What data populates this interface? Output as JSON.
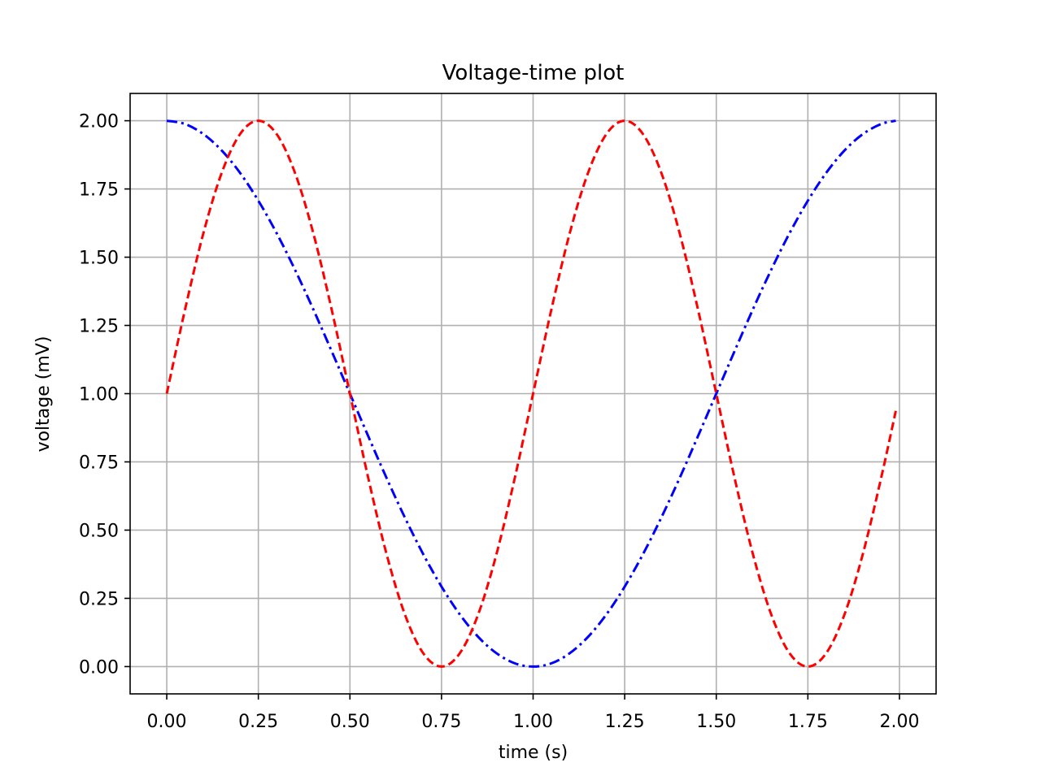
{
  "chart_data": {
    "type": "line",
    "title": "Voltage-time plot",
    "xlabel": "time (s)",
    "ylabel": "voltage (mV)",
    "xlim": [
      -0.1,
      2.1
    ],
    "ylim": [
      -0.1,
      2.1
    ],
    "xticks": [
      0.0,
      0.25,
      0.5,
      0.75,
      1.0,
      1.25,
      1.5,
      1.75,
      2.0
    ],
    "xtick_labels": [
      "0.00",
      "0.25",
      "0.50",
      "0.75",
      "1.00",
      "1.25",
      "1.50",
      "1.75",
      "2.00"
    ],
    "yticks": [
      0.0,
      0.25,
      0.5,
      0.75,
      1.0,
      1.25,
      1.5,
      1.75,
      2.0
    ],
    "ytick_labels": [
      "0.00",
      "0.25",
      "0.50",
      "0.75",
      "1.00",
      "1.25",
      "1.50",
      "1.75",
      "2.00"
    ],
    "grid": true,
    "legend": "none",
    "series": [
      {
        "color": "#0000ff",
        "linestyle": "dash-dot",
        "x": [
          0.0,
          0.05,
          0.1,
          0.15,
          0.2,
          0.25,
          0.3,
          0.35,
          0.4,
          0.45,
          0.5,
          0.55,
          0.6,
          0.65,
          0.7,
          0.75,
          0.8,
          0.85,
          0.9,
          0.95,
          1.0,
          1.05,
          1.1,
          1.15,
          1.2,
          1.25,
          1.3,
          1.35,
          1.4,
          1.45,
          1.5,
          1.55,
          1.6,
          1.65,
          1.7,
          1.75,
          1.8,
          1.85,
          1.9,
          1.95,
          1.99
        ],
        "y": [
          2.0,
          1.988,
          1.951,
          1.891,
          1.809,
          1.707,
          1.588,
          1.454,
          1.309,
          1.156,
          1.0,
          0.844,
          0.691,
          0.546,
          0.412,
          0.293,
          0.191,
          0.109,
          0.049,
          0.012,
          0.0,
          0.012,
          0.049,
          0.109,
          0.191,
          0.293,
          0.412,
          0.546,
          0.691,
          0.844,
          1.0,
          1.156,
          1.309,
          1.454,
          1.588,
          1.707,
          1.809,
          1.891,
          1.951,
          1.988,
          2.0
        ]
      },
      {
        "color": "#ff0000",
        "linestyle": "dashed",
        "x": [
          0.0,
          0.05,
          0.1,
          0.15,
          0.2,
          0.25,
          0.3,
          0.35,
          0.4,
          0.45,
          0.5,
          0.55,
          0.6,
          0.65,
          0.7,
          0.75,
          0.8,
          0.85,
          0.9,
          0.95,
          1.0,
          1.05,
          1.1,
          1.15,
          1.2,
          1.25,
          1.3,
          1.35,
          1.4,
          1.45,
          1.5,
          1.55,
          1.6,
          1.65,
          1.7,
          1.75,
          1.8,
          1.85,
          1.9,
          1.95,
          1.99
        ],
        "y": [
          1.0,
          1.309,
          1.588,
          1.809,
          1.951,
          2.0,
          1.951,
          1.809,
          1.588,
          1.309,
          1.0,
          0.691,
          0.412,
          0.191,
          0.049,
          0.0,
          0.049,
          0.191,
          0.412,
          0.691,
          1.0,
          1.309,
          1.588,
          1.809,
          1.951,
          2.0,
          1.951,
          1.809,
          1.588,
          1.309,
          1.0,
          0.691,
          0.412,
          0.191,
          0.049,
          0.0,
          0.049,
          0.191,
          0.412,
          0.691,
          0.937
        ]
      }
    ]
  }
}
